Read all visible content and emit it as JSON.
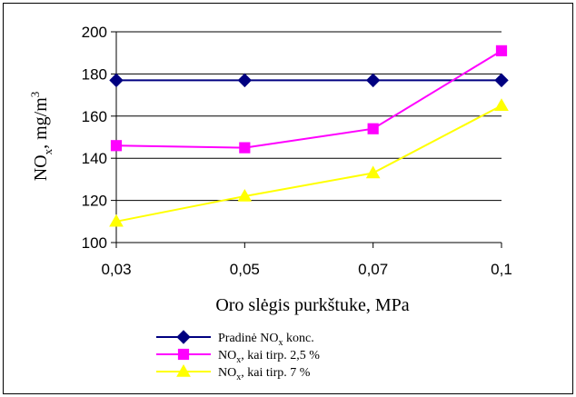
{
  "chart_data": {
    "type": "line",
    "x": [
      "0,03",
      "0,05",
      "0,07",
      "0,1"
    ],
    "xlabel": "Oro slėgis purkštuke, MPa",
    "ylabel": {
      "base": "NO",
      "sub": "x",
      "mid": ",  mg/m",
      "sup": "3"
    },
    "ylim": [
      100,
      200
    ],
    "yticks": [
      100,
      120,
      140,
      160,
      180,
      200
    ],
    "grid": true,
    "legend_position": "bottom",
    "series": [
      {
        "name": {
          "pre": "Pradinė NO",
          "sub": "x",
          "post": " konc."
        },
        "color": "#000080",
        "marker": "diamond",
        "values": [
          177,
          177,
          177,
          177
        ]
      },
      {
        "name": {
          "pre": "NO",
          "sub": "x",
          "post": ", kai tirp. 2,5 %"
        },
        "color": "#ff00ff",
        "marker": "square",
        "values": [
          146,
          145,
          154,
          191
        ]
      },
      {
        "name": {
          "pre": "NO",
          "sub": "x",
          "post": ", kai tirp. 7 %"
        },
        "color": "#ffff00",
        "marker": "triangle",
        "values": [
          110,
          122,
          133,
          165
        ]
      }
    ]
  }
}
